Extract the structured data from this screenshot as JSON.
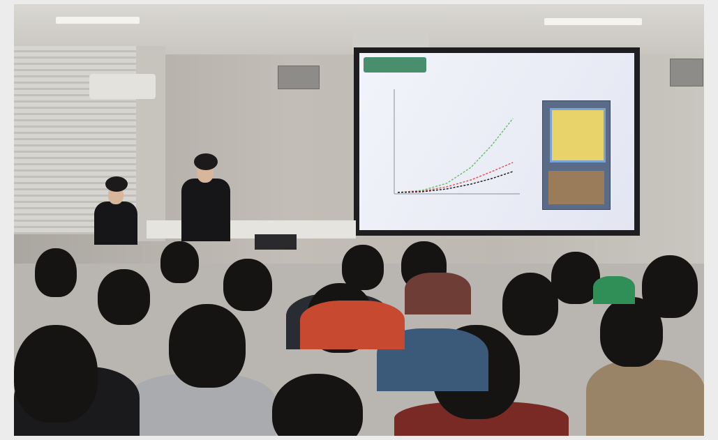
{
  "photo": {
    "subject": "",
    "slide": {
      "header_text": "",
      "chart_title": "",
      "x_axis_label": "",
      "series_colors": [
        "#6fbf6a",
        "#e05555",
        "#222222"
      ]
    }
  }
}
